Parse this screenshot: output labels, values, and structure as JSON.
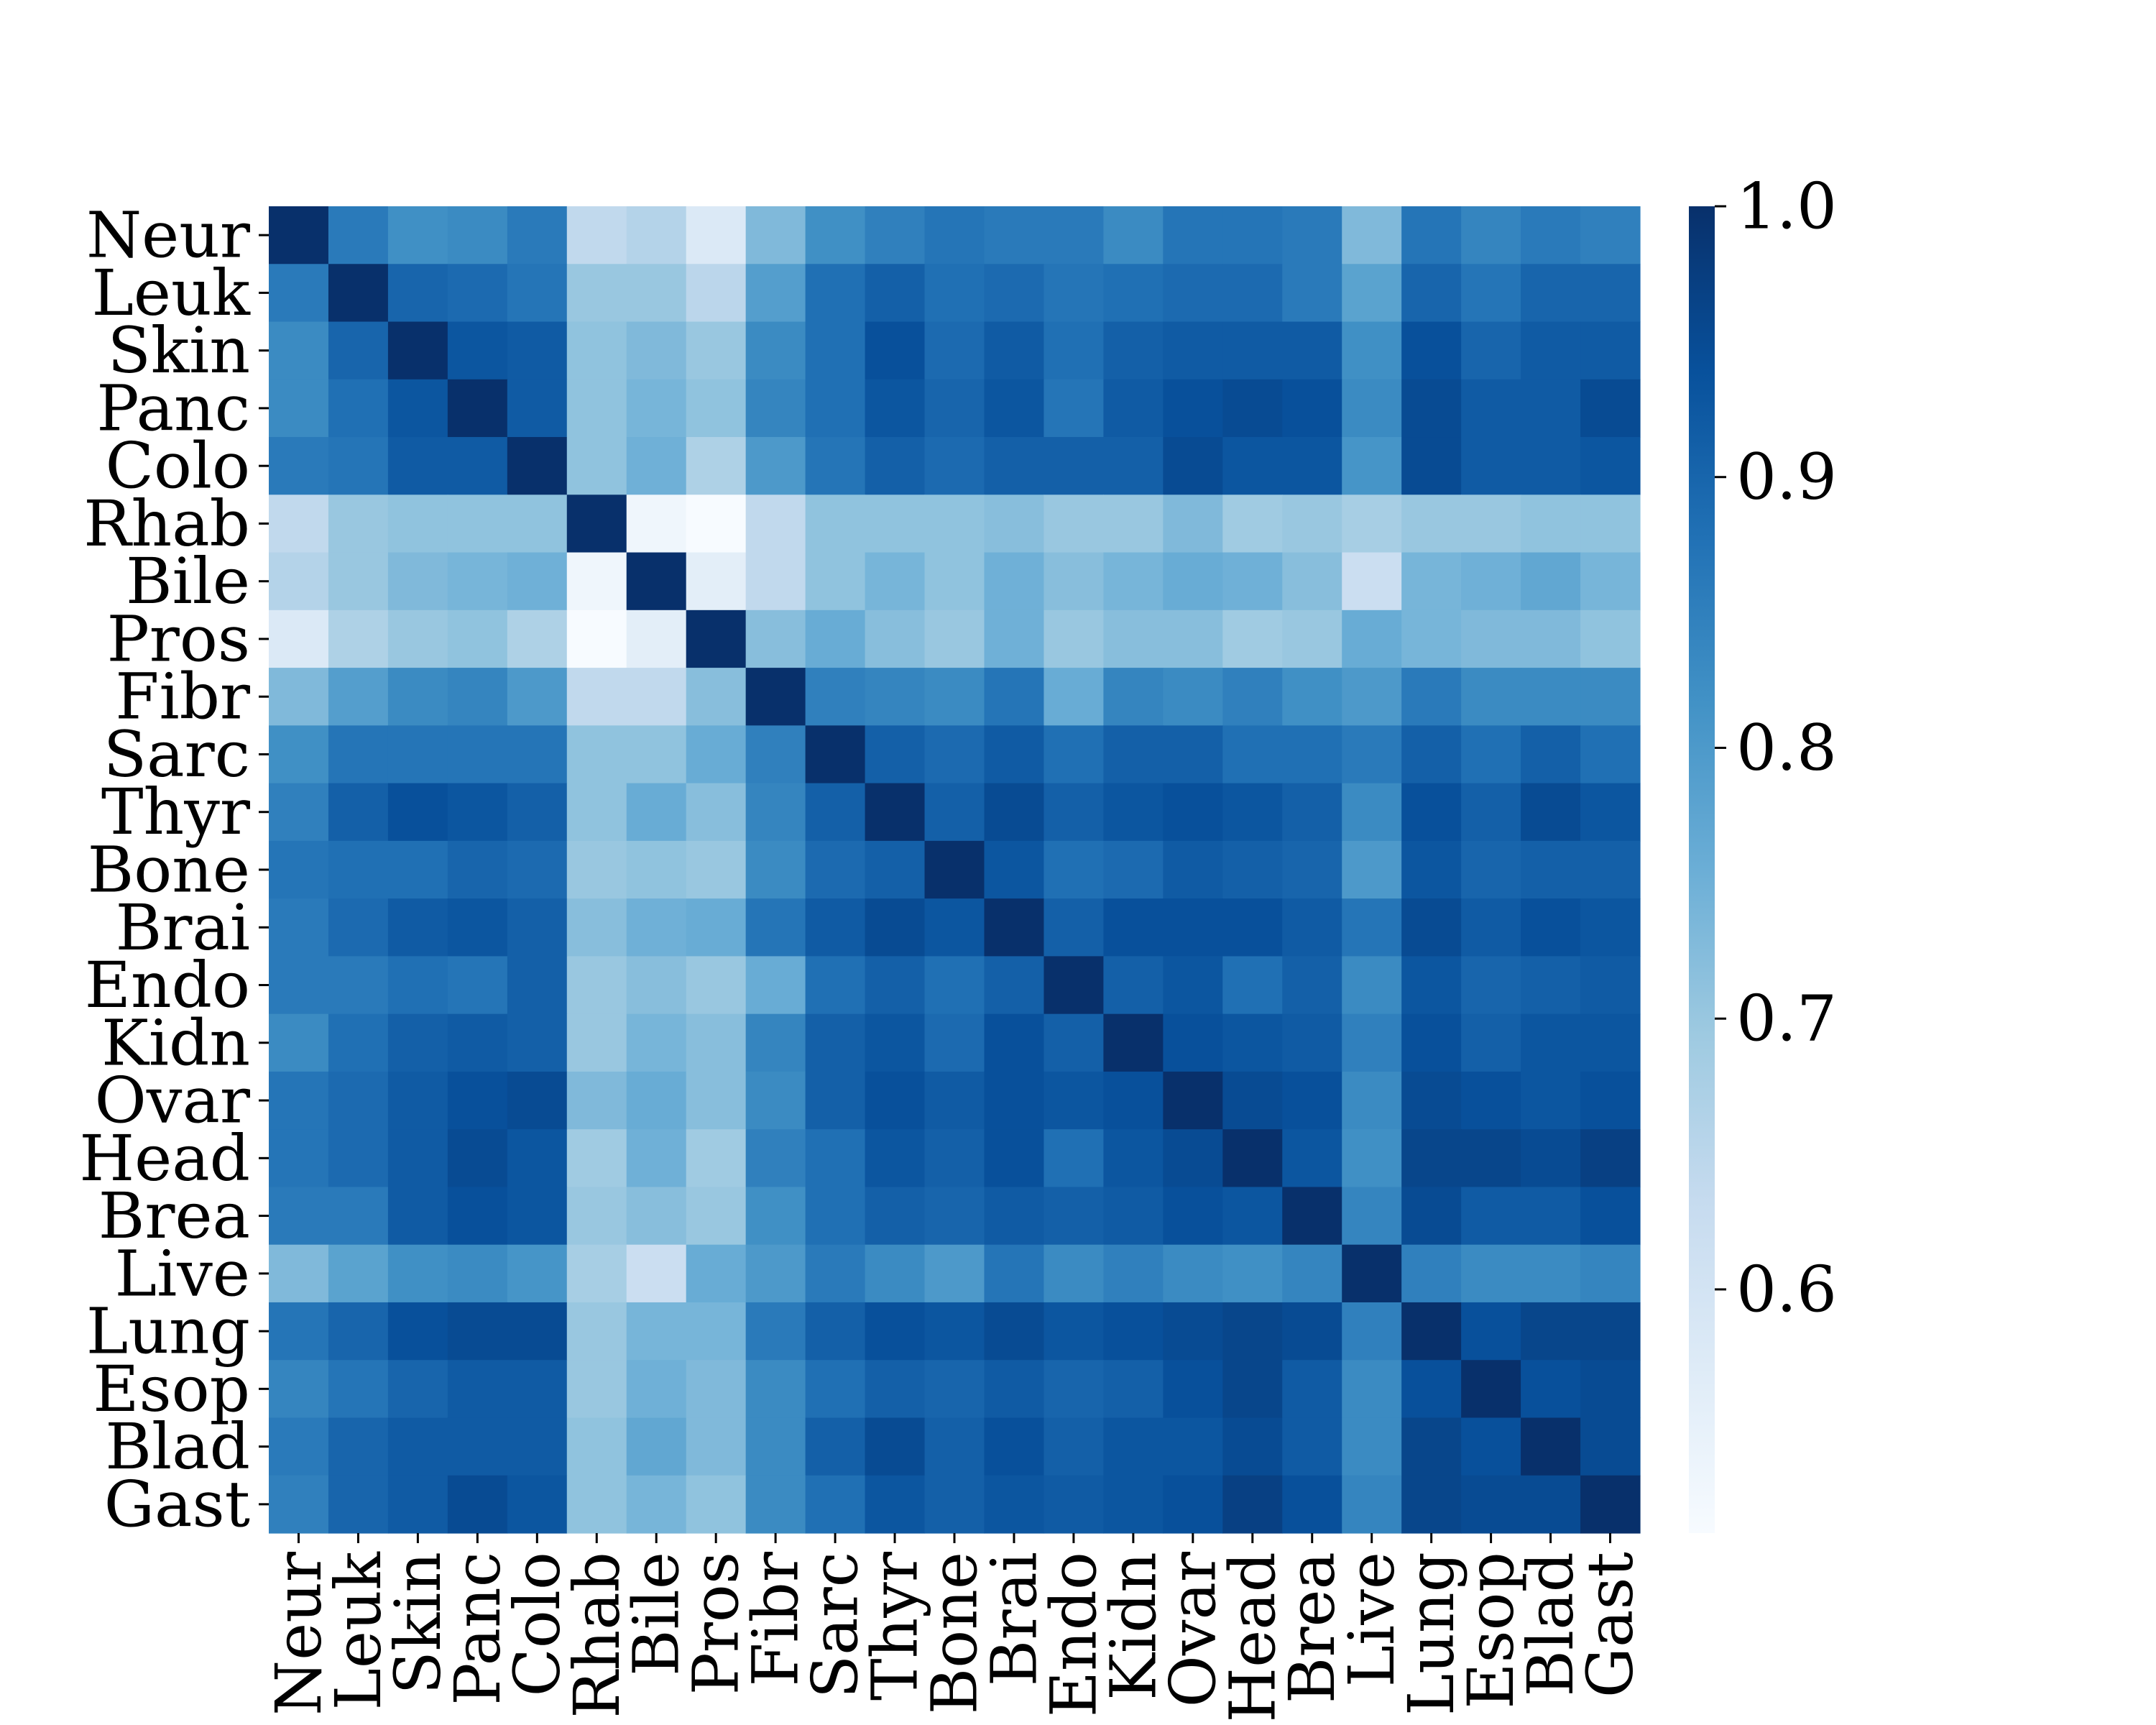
{
  "chart_data": {
    "type": "heatmap",
    "title": "",
    "xlabel": "",
    "ylabel": "",
    "labels": [
      "Neur",
      "Leuk",
      "Skin",
      "Panc",
      "Colo",
      "Rhab",
      "Bile",
      "Pros",
      "Fibr",
      "Sarc",
      "Thyr",
      "Bone",
      "Brai",
      "Endo",
      "Kidn",
      "Ovar",
      "Head",
      "Brea",
      "Live",
      "Lung",
      "Esop",
      "Blad",
      "Gast"
    ],
    "matrix": [
      [
        1.0,
        0.86,
        0.82,
        0.83,
        0.86,
        0.64,
        0.66,
        0.58,
        0.73,
        0.82,
        0.85,
        0.87,
        0.86,
        0.86,
        0.83,
        0.87,
        0.87,
        0.86,
        0.73,
        0.87,
        0.84,
        0.86,
        0.85
      ],
      [
        0.86,
        1.0,
        0.9,
        0.89,
        0.87,
        0.7,
        0.7,
        0.65,
        0.79,
        0.88,
        0.91,
        0.88,
        0.89,
        0.87,
        0.88,
        0.89,
        0.89,
        0.86,
        0.78,
        0.9,
        0.87,
        0.9,
        0.9
      ],
      [
        0.83,
        0.9,
        1.0,
        0.93,
        0.92,
        0.71,
        0.73,
        0.7,
        0.83,
        0.88,
        0.94,
        0.89,
        0.92,
        0.88,
        0.91,
        0.92,
        0.92,
        0.92,
        0.82,
        0.94,
        0.9,
        0.92,
        0.92
      ],
      [
        0.83,
        0.88,
        0.93,
        1.0,
        0.92,
        0.71,
        0.74,
        0.71,
        0.84,
        0.88,
        0.93,
        0.9,
        0.93,
        0.87,
        0.92,
        0.94,
        0.95,
        0.94,
        0.83,
        0.95,
        0.92,
        0.92,
        0.95
      ],
      [
        0.86,
        0.87,
        0.92,
        0.92,
        1.0,
        0.71,
        0.75,
        0.67,
        0.8,
        0.87,
        0.91,
        0.89,
        0.91,
        0.91,
        0.91,
        0.95,
        0.93,
        0.93,
        0.81,
        0.95,
        0.92,
        0.92,
        0.93
      ],
      [
        0.64,
        0.7,
        0.71,
        0.71,
        0.71,
        1.0,
        0.53,
        0.51,
        0.64,
        0.71,
        0.71,
        0.71,
        0.72,
        0.7,
        0.7,
        0.73,
        0.69,
        0.7,
        0.68,
        0.7,
        0.7,
        0.71,
        0.71
      ],
      [
        0.66,
        0.7,
        0.73,
        0.74,
        0.75,
        0.53,
        1.0,
        0.56,
        0.64,
        0.71,
        0.74,
        0.71,
        0.75,
        0.72,
        0.74,
        0.76,
        0.75,
        0.72,
        0.62,
        0.74,
        0.75,
        0.77,
        0.74
      ],
      [
        0.58,
        0.67,
        0.7,
        0.71,
        0.67,
        0.51,
        0.56,
        1.0,
        0.72,
        0.76,
        0.72,
        0.7,
        0.75,
        0.7,
        0.72,
        0.72,
        0.69,
        0.7,
        0.76,
        0.74,
        0.73,
        0.73,
        0.71
      ],
      [
        0.73,
        0.79,
        0.83,
        0.84,
        0.8,
        0.64,
        0.64,
        0.72,
        1.0,
        0.85,
        0.84,
        0.83,
        0.87,
        0.76,
        0.84,
        0.83,
        0.85,
        0.82,
        0.8,
        0.86,
        0.83,
        0.83,
        0.83
      ],
      [
        0.82,
        0.87,
        0.87,
        0.87,
        0.87,
        0.71,
        0.71,
        0.76,
        0.85,
        1.0,
        0.91,
        0.89,
        0.92,
        0.88,
        0.91,
        0.91,
        0.88,
        0.88,
        0.86,
        0.91,
        0.88,
        0.91,
        0.88
      ],
      [
        0.85,
        0.91,
        0.94,
        0.93,
        0.91,
        0.71,
        0.76,
        0.72,
        0.84,
        0.91,
        1.0,
        0.91,
        0.95,
        0.91,
        0.93,
        0.94,
        0.93,
        0.91,
        0.83,
        0.94,
        0.91,
        0.95,
        0.93
      ],
      [
        0.87,
        0.88,
        0.88,
        0.9,
        0.89,
        0.7,
        0.71,
        0.7,
        0.83,
        0.89,
        0.91,
        1.0,
        0.93,
        0.88,
        0.89,
        0.92,
        0.91,
        0.9,
        0.8,
        0.93,
        0.9,
        0.91,
        0.91
      ],
      [
        0.86,
        0.89,
        0.92,
        0.93,
        0.91,
        0.72,
        0.75,
        0.76,
        0.87,
        0.92,
        0.95,
        0.93,
        1.0,
        0.91,
        0.94,
        0.94,
        0.94,
        0.92,
        0.87,
        0.95,
        0.92,
        0.94,
        0.93
      ],
      [
        0.86,
        0.86,
        0.88,
        0.87,
        0.91,
        0.7,
        0.72,
        0.7,
        0.76,
        0.88,
        0.91,
        0.88,
        0.91,
        1.0,
        0.91,
        0.93,
        0.88,
        0.91,
        0.83,
        0.93,
        0.9,
        0.91,
        0.92
      ],
      [
        0.83,
        0.88,
        0.91,
        0.92,
        0.91,
        0.7,
        0.74,
        0.72,
        0.84,
        0.91,
        0.93,
        0.89,
        0.94,
        0.91,
        1.0,
        0.94,
        0.93,
        0.92,
        0.85,
        0.94,
        0.91,
        0.93,
        0.93
      ],
      [
        0.87,
        0.89,
        0.92,
        0.94,
        0.95,
        0.73,
        0.76,
        0.72,
        0.83,
        0.91,
        0.94,
        0.92,
        0.94,
        0.93,
        0.94,
        1.0,
        0.95,
        0.94,
        0.83,
        0.95,
        0.94,
        0.93,
        0.94
      ],
      [
        0.87,
        0.89,
        0.92,
        0.95,
        0.93,
        0.69,
        0.75,
        0.69,
        0.85,
        0.88,
        0.93,
        0.91,
        0.94,
        0.88,
        0.93,
        0.95,
        1.0,
        0.93,
        0.82,
        0.96,
        0.96,
        0.95,
        0.97
      ],
      [
        0.86,
        0.86,
        0.92,
        0.94,
        0.93,
        0.7,
        0.72,
        0.7,
        0.82,
        0.88,
        0.91,
        0.9,
        0.92,
        0.91,
        0.92,
        0.94,
        0.93,
        1.0,
        0.84,
        0.95,
        0.92,
        0.92,
        0.94
      ],
      [
        0.73,
        0.78,
        0.82,
        0.83,
        0.81,
        0.68,
        0.62,
        0.76,
        0.8,
        0.86,
        0.83,
        0.8,
        0.87,
        0.83,
        0.85,
        0.83,
        0.82,
        0.84,
        1.0,
        0.85,
        0.83,
        0.83,
        0.84
      ],
      [
        0.87,
        0.9,
        0.94,
        0.95,
        0.95,
        0.7,
        0.74,
        0.74,
        0.86,
        0.91,
        0.94,
        0.93,
        0.95,
        0.93,
        0.94,
        0.95,
        0.96,
        0.95,
        0.85,
        1.0,
        0.94,
        0.96,
        0.96
      ],
      [
        0.84,
        0.87,
        0.9,
        0.92,
        0.92,
        0.7,
        0.75,
        0.73,
        0.83,
        0.88,
        0.91,
        0.9,
        0.92,
        0.9,
        0.91,
        0.94,
        0.96,
        0.92,
        0.83,
        0.94,
        1.0,
        0.94,
        0.95
      ],
      [
        0.86,
        0.9,
        0.92,
        0.92,
        0.92,
        0.71,
        0.77,
        0.73,
        0.83,
        0.91,
        0.95,
        0.91,
        0.94,
        0.91,
        0.93,
        0.93,
        0.95,
        0.92,
        0.83,
        0.96,
        0.94,
        1.0,
        0.95
      ],
      [
        0.85,
        0.9,
        0.92,
        0.95,
        0.93,
        0.71,
        0.74,
        0.71,
        0.83,
        0.88,
        0.93,
        0.91,
        0.93,
        0.92,
        0.93,
        0.94,
        0.97,
        0.94,
        0.84,
        0.96,
        0.95,
        0.95,
        1.0
      ]
    ],
    "vmin": 0.51,
    "vmax": 1.0,
    "colormap": "Blues",
    "colorbar_ticks": [
      "0.6",
      "0.7",
      "0.8",
      "0.9",
      "1.0"
    ],
    "colorbar_tick_values": [
      0.6,
      0.7,
      0.8,
      0.9,
      1.0
    ],
    "grid": false,
    "legend": "colorbar-right"
  }
}
